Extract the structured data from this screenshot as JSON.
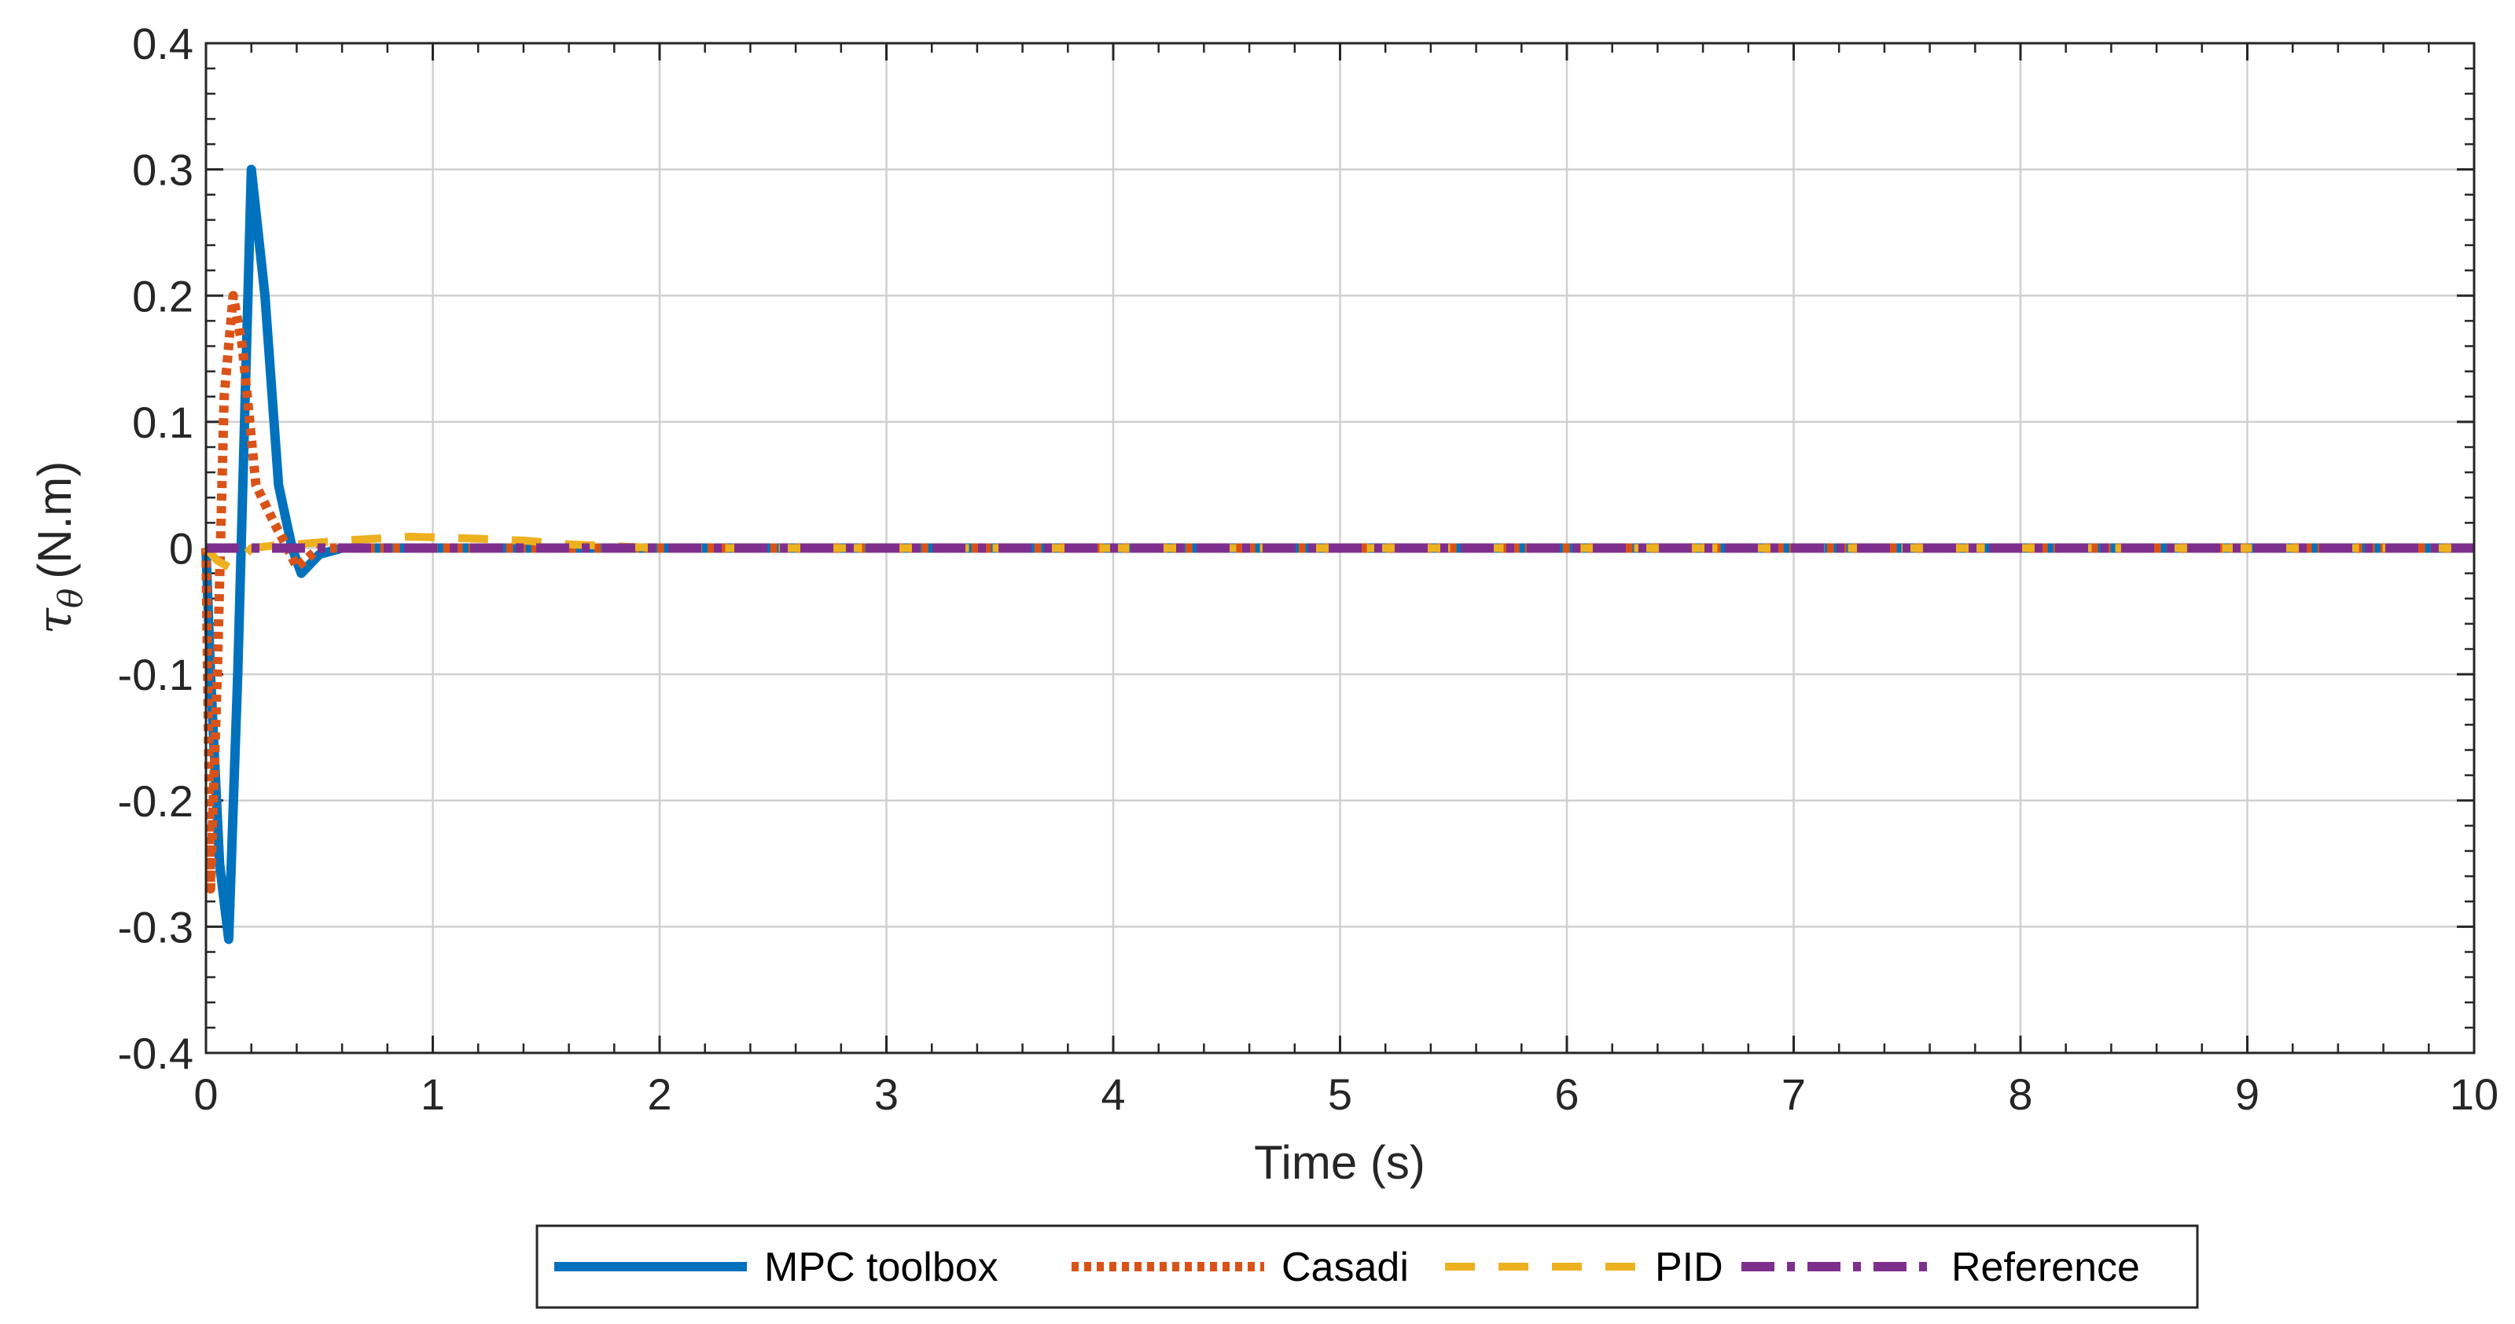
{
  "chart_data": {
    "type": "line",
    "title": "",
    "xlabel": "Time (s)",
    "ylabel": "τθ (N.m)",
    "ylabel_symbol": "τ",
    "ylabel_sub": "θ",
    "ylabel_unit": "(N.m)",
    "xlim": [
      0,
      10
    ],
    "ylim": [
      -0.4,
      0.4
    ],
    "xticks": [
      0,
      1,
      2,
      3,
      4,
      5,
      6,
      7,
      8,
      9,
      10
    ],
    "xtick_labels": [
      "0",
      "1",
      "2",
      "3",
      "4",
      "5",
      "6",
      "7",
      "8",
      "9",
      "10"
    ],
    "yticks": [
      -0.4,
      -0.3,
      -0.2,
      -0.1,
      0,
      0.1,
      0.2,
      0.3,
      0.4
    ],
    "ytick_labels": [
      "-0.4",
      "-0.3",
      "-0.2",
      "-0.1",
      "0",
      "0.1",
      "0.2",
      "0.3",
      "0.4"
    ],
    "grid": true,
    "legend_position": "bottom",
    "series": [
      {
        "name": "MPC toolbox",
        "color": "#0072BD",
        "style": "solid",
        "x": [
          0,
          0.02,
          0.06,
          0.1,
          0.14,
          0.2,
          0.26,
          0.32,
          0.38,
          0.42,
          0.5,
          0.6,
          1,
          10
        ],
        "y": [
          0,
          -0.1,
          -0.25,
          -0.31,
          -0.1,
          0.3,
          0.2,
          0.05,
          0.0,
          -0.02,
          -0.005,
          0,
          0,
          0
        ]
      },
      {
        "name": "Casadi",
        "color": "#D95319",
        "style": "dotted",
        "x": [
          0,
          0.02,
          0.05,
          0.08,
          0.12,
          0.16,
          0.22,
          0.3,
          0.36,
          0.4,
          0.5,
          1,
          10
        ],
        "y": [
          0,
          -0.27,
          -0.1,
          0.12,
          0.2,
          0.16,
          0.05,
          0.02,
          0.0,
          -0.015,
          0,
          0,
          0
        ]
      },
      {
        "name": "PID",
        "color": "#EDB120",
        "style": "dashed",
        "x": [
          0,
          0.05,
          0.1,
          0.15,
          0.2,
          0.3,
          0.4,
          0.6,
          0.9,
          1.1,
          1.4,
          1.6,
          2,
          10
        ],
        "y": [
          0,
          -0.01,
          -0.015,
          -0.01,
          0,
          0.002,
          0.003,
          0.006,
          0.009,
          0.008,
          0.006,
          0.003,
          0,
          0
        ]
      },
      {
        "name": "Reference",
        "color": "#7E2F8E",
        "style": "dashdot",
        "x": [
          0,
          10
        ],
        "y": [
          0,
          0
        ]
      }
    ]
  }
}
